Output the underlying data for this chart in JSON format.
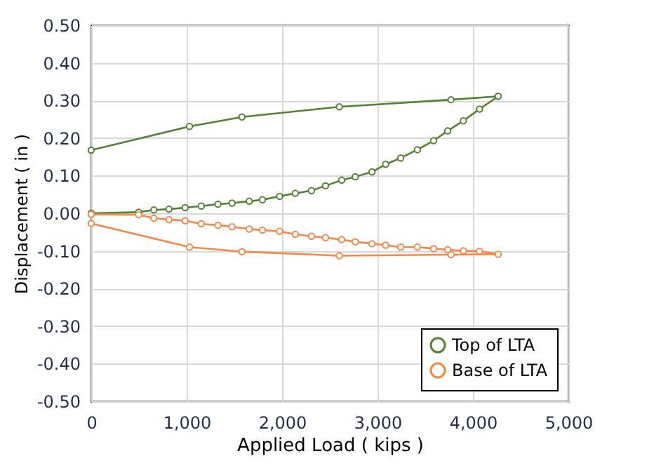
{
  "chart_data": {
    "type": "line",
    "xlabel": "Applied Load ( kips )",
    "ylabel": "Displacement ( in )",
    "xlim": [
      0,
      5000
    ],
    "ylim": [
      -0.5,
      0.5
    ],
    "xticks": [
      0,
      {
        "value": 1000,
        "label": "1,000"
      },
      {
        "value": 2000,
        "label": "2,000"
      },
      {
        "value": 3000,
        "label": "3,000"
      },
      {
        "value": 4000,
        "label": "4,000"
      },
      {
        "value": 5000,
        "label": "5,000"
      }
    ],
    "yticks": [
      {
        "value": -0.5,
        "label": "-0.50"
      },
      {
        "value": -0.4,
        "label": "-0.40"
      },
      {
        "value": -0.3,
        "label": "-0.30"
      },
      {
        "value": -0.2,
        "label": "-0.20"
      },
      {
        "value": -0.1,
        "label": "-0.10"
      },
      {
        "value": 0,
        "label": "0.00"
      },
      {
        "value": 0.1,
        "label": "0.10"
      },
      {
        "value": 0.2,
        "label": "0.20"
      },
      {
        "value": 0.3,
        "label": "0.30"
      },
      {
        "value": 0.4,
        "label": "0.40"
      },
      {
        "value": 0.5,
        "label": "0.50"
      }
    ],
    "grid": true,
    "legend": "bottom right",
    "marker": "circle",
    "line_style": "solid",
    "series": [
      {
        "name": "Top of LTA",
        "color": "#548235",
        "x": [
          0,
          497,
          656,
          815,
          984,
          1153,
          1328,
          1476,
          1656,
          1794,
          1974,
          2138,
          2307,
          2455,
          2624,
          2767,
          2942,
          3085,
          3243,
          3418,
          3587,
          3735,
          3900,
          4069,
          4265,
          3770,
          2600,
          1580,
          1030,
          0
        ],
        "values": [
          0,
          0.003,
          0.009,
          0.011,
          0.015,
          0.019,
          0.024,
          0.027,
          0.032,
          0.036,
          0.045,
          0.053,
          0.06,
          0.073,
          0.088,
          0.097,
          0.11,
          0.13,
          0.147,
          0.169,
          0.193,
          0.219,
          0.246,
          0.277,
          0.311,
          0.302,
          0.283,
          0.256,
          0.231,
          0.168
        ]
      },
      {
        "name": "Base of LTA",
        "color": "#f4874b",
        "x": [
          0,
          497,
          656,
          815,
          984,
          1153,
          1328,
          1476,
          1656,
          1794,
          1974,
          2138,
          2307,
          2455,
          2624,
          2767,
          2942,
          3085,
          3243,
          3418,
          3587,
          3735,
          3900,
          4069,
          4265,
          3770,
          2600,
          1580,
          1030,
          0
        ],
        "values": [
          -0.003,
          -0.004,
          -0.013,
          -0.017,
          -0.02,
          -0.028,
          -0.032,
          -0.036,
          -0.042,
          -0.045,
          -0.048,
          -0.056,
          -0.061,
          -0.065,
          -0.07,
          -0.076,
          -0.081,
          -0.085,
          -0.09,
          -0.09,
          -0.094,
          -0.097,
          -0.1,
          -0.101,
          -0.109,
          -0.11,
          -0.113,
          -0.102,
          -0.09,
          -0.027
        ]
      }
    ]
  }
}
